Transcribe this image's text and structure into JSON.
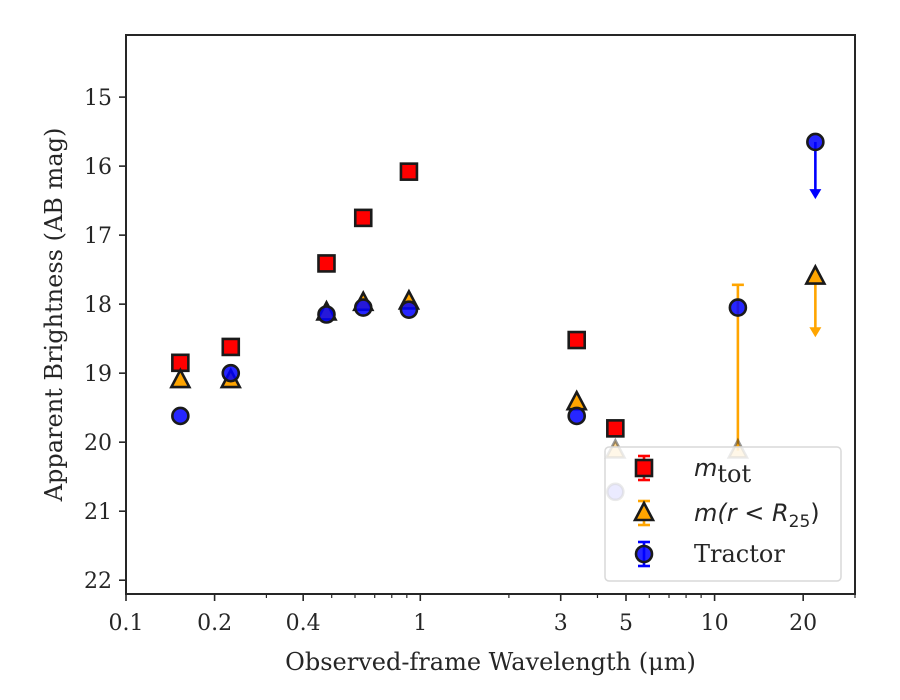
{
  "chart_data": {
    "type": "scatter",
    "title": "",
    "xlabel": "Observed-frame Wavelength (μm)",
    "ylabel": "Apparent Brightness (AB mag)",
    "xscale": "log",
    "xlim": [
      0.1,
      30
    ],
    "ylim": [
      22.2,
      14.1
    ],
    "y_inverted": true,
    "x_ticks": [
      {
        "value": 0.1,
        "label": "0.1"
      },
      {
        "value": 0.2,
        "label": "0.2"
      },
      {
        "value": 0.4,
        "label": "0.4"
      },
      {
        "value": 1,
        "label": "1"
      },
      {
        "value": 3,
        "label": "3"
      },
      {
        "value": 5,
        "label": "5"
      },
      {
        "value": 10,
        "label": "10"
      },
      {
        "value": 20,
        "label": "20"
      }
    ],
    "y_ticks": [
      {
        "value": 15,
        "label": "15"
      },
      {
        "value": 16,
        "label": "16"
      },
      {
        "value": 17,
        "label": "17"
      },
      {
        "value": 18,
        "label": "18"
      },
      {
        "value": 19,
        "label": "19"
      },
      {
        "value": 20,
        "label": "20"
      },
      {
        "value": 21,
        "label": "21"
      },
      {
        "value": 22,
        "label": "22"
      }
    ],
    "grid": false,
    "legend_position": "bottom-right",
    "series": [
      {
        "name_parts": {
          "base": "m",
          "sub": "tot"
        },
        "marker": "square",
        "color": "#ff0000",
        "edge": "#1a1a1a",
        "points": [
          {
            "x": 0.153,
            "y": 18.85
          },
          {
            "x": 0.227,
            "y": 18.62
          },
          {
            "x": 0.48,
            "y": 17.41
          },
          {
            "x": 0.64,
            "y": 16.75
          },
          {
            "x": 0.915,
            "y": 16.08
          },
          {
            "x": 3.4,
            "y": 18.52
          },
          {
            "x": 4.6,
            "y": 19.8
          }
        ]
      },
      {
        "name_parts": {
          "pre": "m(r < R",
          "sub": "25",
          "post": ")"
        },
        "marker": "triangle",
        "color": "#ffa500",
        "edge": "#1a1a1a",
        "points": [
          {
            "x": 0.153,
            "y": 19.1
          },
          {
            "x": 0.227,
            "y": 19.1
          },
          {
            "x": 0.48,
            "y": 18.12
          },
          {
            "x": 0.64,
            "y": 17.98
          },
          {
            "x": 0.915,
            "y": 17.96
          },
          {
            "x": 3.4,
            "y": 19.42
          },
          {
            "x": 4.6,
            "y": 20.12
          },
          {
            "x": 12.0,
            "y": 20.12,
            "err_low": 17.72
          },
          {
            "x": 22.0,
            "y": 17.6,
            "upper_limit_to": 18.45
          }
        ]
      },
      {
        "name": "Tractor",
        "marker": "circle",
        "color": "#0000ff",
        "edge": "#1a1a1a",
        "points": [
          {
            "x": 0.153,
            "y": 19.62
          },
          {
            "x": 0.227,
            "y": 19.0
          },
          {
            "x": 0.48,
            "y": 18.15
          },
          {
            "x": 0.64,
            "y": 18.05
          },
          {
            "x": 0.915,
            "y": 18.08
          },
          {
            "x": 3.4,
            "y": 19.62
          },
          {
            "x": 4.6,
            "y": 20.72
          },
          {
            "x": 12.0,
            "y": 18.05
          },
          {
            "x": 22.0,
            "y": 15.65,
            "upper_limit_to": 16.45
          }
        ]
      }
    ]
  }
}
